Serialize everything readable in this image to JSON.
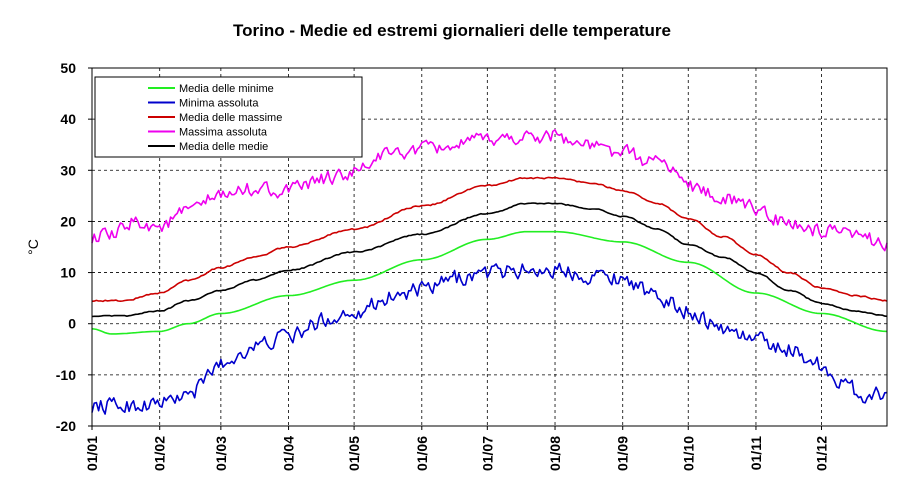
{
  "chart_data": {
    "type": "line",
    "title": "Torino - Medie ed estremi giornalieri delle temperature",
    "xlabel": "",
    "ylabel": "°C",
    "ylim": [
      -20,
      50
    ],
    "yticks": [
      -20,
      -10,
      0,
      10,
      20,
      30,
      40,
      50
    ],
    "grid": true,
    "legend_position": "top-left",
    "x_tick_labels": [
      "01/01",
      "01/02",
      "01/03",
      "01/04",
      "01/05",
      "01/06",
      "01/07",
      "01/08",
      "01/09",
      "01/10",
      "01/11",
      "01/12"
    ],
    "x_tick_days": [
      1,
      32,
      60,
      91,
      121,
      152,
      182,
      213,
      244,
      274,
      305,
      335
    ],
    "x_days_total": 365,
    "series": [
      {
        "name": "Media delle minime",
        "color": "#22ee22",
        "noise": 0,
        "points": [
          [
            1,
            -1
          ],
          [
            10,
            -2
          ],
          [
            32,
            -1.5
          ],
          [
            45,
            0
          ],
          [
            60,
            2
          ],
          [
            91,
            5.5
          ],
          [
            121,
            8.5
          ],
          [
            152,
            12.5
          ],
          [
            182,
            16.5
          ],
          [
            200,
            18
          ],
          [
            213,
            18
          ],
          [
            244,
            16
          ],
          [
            274,
            12
          ],
          [
            305,
            6
          ],
          [
            335,
            2
          ],
          [
            365,
            -1.5
          ]
        ]
      },
      {
        "name": "Minima assoluta",
        "color": "#0000cc",
        "noise": 2.2,
        "points": [
          [
            1,
            -16
          ],
          [
            20,
            -16
          ],
          [
            32,
            -15.5
          ],
          [
            45,
            -14
          ],
          [
            60,
            -8
          ],
          [
            75,
            -4.5
          ],
          [
            91,
            -2.5
          ],
          [
            110,
            1
          ],
          [
            121,
            2.5
          ],
          [
            140,
            5.5
          ],
          [
            152,
            6.5
          ],
          [
            170,
            9
          ],
          [
            182,
            10
          ],
          [
            200,
            10.5
          ],
          [
            213,
            10.5
          ],
          [
            230,
            9.5
          ],
          [
            244,
            9
          ],
          [
            260,
            5
          ],
          [
            274,
            2.5
          ],
          [
            290,
            -1
          ],
          [
            305,
            -3
          ],
          [
            320,
            -5
          ],
          [
            335,
            -8
          ],
          [
            345,
            -12
          ],
          [
            355,
            -14
          ],
          [
            365,
            -13.5
          ]
        ]
      },
      {
        "name": "Media delle massime",
        "color": "#cc0000",
        "noise": 0.2,
        "points": [
          [
            1,
            4.5
          ],
          [
            15,
            4.5
          ],
          [
            32,
            6
          ],
          [
            45,
            8.5
          ],
          [
            60,
            11
          ],
          [
            75,
            13
          ],
          [
            91,
            15
          ],
          [
            121,
            18.5
          ],
          [
            152,
            23
          ],
          [
            182,
            27
          ],
          [
            200,
            28.5
          ],
          [
            213,
            28.5
          ],
          [
            230,
            27.5
          ],
          [
            244,
            26
          ],
          [
            260,
            23.5
          ],
          [
            274,
            20.5
          ],
          [
            290,
            17
          ],
          [
            305,
            13.5
          ],
          [
            320,
            10
          ],
          [
            335,
            7
          ],
          [
            350,
            5.5
          ],
          [
            365,
            4.5
          ]
        ]
      },
      {
        "name": "Massima assoluta",
        "color": "#ee00ee",
        "noise": 2.0,
        "points": [
          [
            1,
            17
          ],
          [
            10,
            17
          ],
          [
            20,
            20
          ],
          [
            32,
            19
          ],
          [
            45,
            22
          ],
          [
            60,
            25
          ],
          [
            75,
            26.5
          ],
          [
            91,
            26
          ],
          [
            110,
            28.5
          ],
          [
            121,
            29.5
          ],
          [
            135,
            33
          ],
          [
            152,
            34
          ],
          [
            170,
            35
          ],
          [
            182,
            36
          ],
          [
            200,
            36.5
          ],
          [
            213,
            37
          ],
          [
            225,
            35
          ],
          [
            244,
            33.5
          ],
          [
            255,
            32
          ],
          [
            265,
            31
          ],
          [
            274,
            27
          ],
          [
            290,
            24.5
          ],
          [
            305,
            22.5
          ],
          [
            320,
            19.5
          ],
          [
            335,
            18
          ],
          [
            350,
            17
          ],
          [
            365,
            16
          ]
        ]
      },
      {
        "name": "Media delle medie",
        "color": "#000000",
        "noise": 0.15,
        "points": [
          [
            1,
            1.5
          ],
          [
            15,
            1.5
          ],
          [
            32,
            2.5
          ],
          [
            45,
            4.5
          ],
          [
            60,
            6.5
          ],
          [
            75,
            8.5
          ],
          [
            91,
            10.5
          ],
          [
            121,
            14
          ],
          [
            152,
            17.5
          ],
          [
            182,
            21.5
          ],
          [
            200,
            23.5
          ],
          [
            213,
            23.5
          ],
          [
            230,
            22.5
          ],
          [
            244,
            21
          ],
          [
            260,
            18.5
          ],
          [
            274,
            15.5
          ],
          [
            290,
            13
          ],
          [
            305,
            10
          ],
          [
            320,
            6.5
          ],
          [
            335,
            4
          ],
          [
            350,
            2.5
          ],
          [
            365,
            1.5
          ]
        ]
      }
    ]
  }
}
